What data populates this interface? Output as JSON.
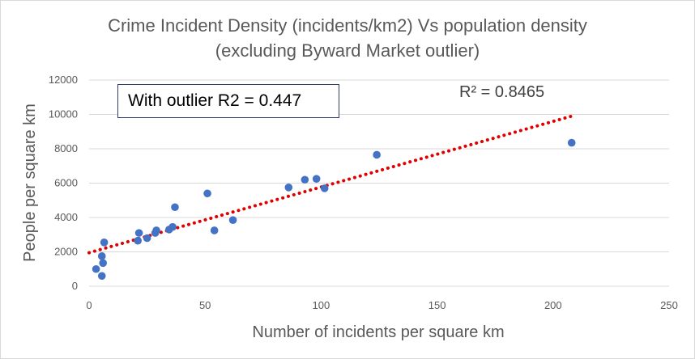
{
  "chart_data": {
    "type": "scatter",
    "title": "Crime Incident Density (incidents/km2) Vs population density",
    "subtitle": "(excluding Byward Market outlier)",
    "xlabel": "Number of incidents per square km",
    "ylabel": "People per square km",
    "xlim": [
      0,
      250
    ],
    "ylim": [
      0,
      12000
    ],
    "xticks": [
      "0",
      "50",
      "100",
      "150",
      "200",
      "250"
    ],
    "yticks": [
      "0",
      "2000",
      "4000",
      "6000",
      "8000",
      "10000",
      "12000"
    ],
    "grid": "horizontal",
    "legend": "none",
    "marker_color": "#4472c4",
    "trendline_color": "#e00000",
    "trendline": {
      "x": [
        0,
        208
      ],
      "y": [
        1950,
        9900
      ]
    },
    "points": [
      {
        "x": 3,
        "y": 1000
      },
      {
        "x": 5.5,
        "y": 600
      },
      {
        "x": 5.5,
        "y": 1750
      },
      {
        "x": 6,
        "y": 1350
      },
      {
        "x": 6.5,
        "y": 2550
      },
      {
        "x": 21,
        "y": 2650
      },
      {
        "x": 21.5,
        "y": 3100
      },
      {
        "x": 25,
        "y": 2800
      },
      {
        "x": 28.5,
        "y": 3100
      },
      {
        "x": 29,
        "y": 3250
      },
      {
        "x": 34.5,
        "y": 3300
      },
      {
        "x": 36,
        "y": 3450
      },
      {
        "x": 37,
        "y": 4600
      },
      {
        "x": 51,
        "y": 5400
      },
      {
        "x": 54,
        "y": 3250
      },
      {
        "x": 62,
        "y": 3850
      },
      {
        "x": 86,
        "y": 5750
      },
      {
        "x": 93,
        "y": 6200
      },
      {
        "x": 98,
        "y": 6250
      },
      {
        "x": 101.5,
        "y": 5700
      },
      {
        "x": 124,
        "y": 7650
      },
      {
        "x": 208,
        "y": 8350
      }
    ],
    "annotations": {
      "box_text": "With outlier  R2 = 0.447",
      "r2_text": "R² = 0.8465"
    }
  }
}
